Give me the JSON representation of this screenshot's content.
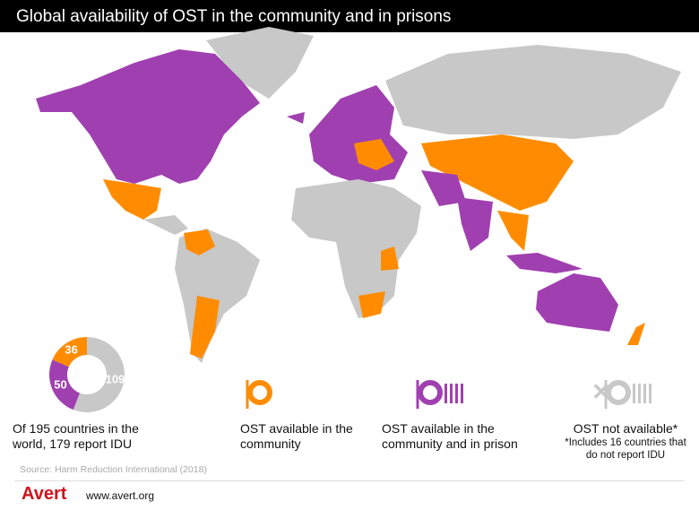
{
  "header": {
    "title": "Global availability of OST in the community and in prisons"
  },
  "chart_data": {
    "type": "donut",
    "categories": [
      "OST available in the community",
      "OST available in the community and in prison",
      "OST not available*"
    ],
    "values": [
      36,
      50,
      109
    ],
    "colors": [
      "#ff8c00",
      "#a040b0",
      "#c8c8c8"
    ],
    "caption": "Of 195 countries in the world, 179 report IDU",
    "note": "*Includes 16 countries that do not report IDU"
  },
  "source": "Source: Harm Reduction International (2018)",
  "footer": {
    "logo": "Avert",
    "url": "www.avert.org"
  }
}
